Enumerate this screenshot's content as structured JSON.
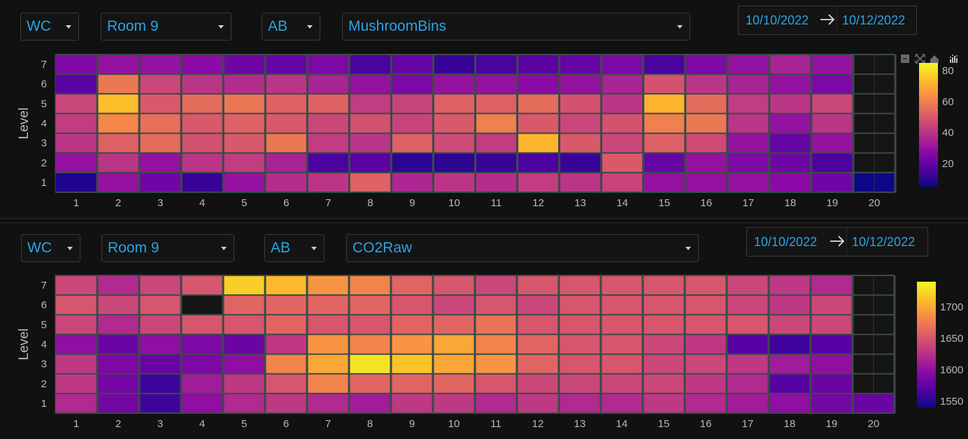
{
  "panels": [
    {
      "filters": {
        "site": "WC",
        "room": "Room 9",
        "zone": "AB",
        "metric": "MushroomBins"
      },
      "date_range": {
        "start": "10/10/2022",
        "end": "10/12/2022"
      },
      "chart_data": {
        "type": "heatmap",
        "title": "",
        "xlabel": "",
        "ylabel": "Level",
        "x": [
          1,
          2,
          3,
          4,
          5,
          6,
          7,
          8,
          9,
          10,
          11,
          12,
          13,
          14,
          15,
          16,
          17,
          18,
          19,
          20
        ],
        "y": [
          1,
          2,
          3,
          4,
          5,
          6,
          7
        ],
        "colorscale": "plasma",
        "zmin": 5,
        "zmax": 85,
        "colorbar_ticks": [
          20,
          40,
          60,
          80
        ],
        "z": [
          [
            8,
            30,
            22,
            12,
            30,
            38,
            40,
            52,
            36,
            40,
            38,
            42,
            40,
            44,
            30,
            30,
            30,
            28,
            22,
            5
          ],
          [
            30,
            40,
            30,
            40,
            42,
            35,
            15,
            18,
            10,
            10,
            12,
            15,
            12,
            50,
            20,
            30,
            25,
            22,
            15,
            null
          ],
          [
            40,
            52,
            55,
            48,
            50,
            58,
            42,
            40,
            52,
            46,
            42,
            72,
            50,
            45,
            52,
            46,
            30,
            20,
            30,
            null
          ],
          [
            42,
            62,
            56,
            50,
            52,
            50,
            45,
            48,
            44,
            50,
            60,
            50,
            45,
            48,
            60,
            58,
            40,
            30,
            40,
            null
          ],
          [
            45,
            74,
            50,
            55,
            58,
            52,
            52,
            42,
            44,
            52,
            52,
            55,
            48,
            40,
            72,
            55,
            42,
            40,
            45,
            null
          ],
          [
            18,
            58,
            45,
            40,
            38,
            40,
            35,
            30,
            25,
            30,
            30,
            28,
            30,
            35,
            48,
            40,
            35,
            30,
            25,
            null
          ],
          [
            25,
            30,
            30,
            28,
            22,
            20,
            25,
            15,
            20,
            12,
            15,
            18,
            20,
            25,
            15,
            25,
            30,
            35,
            30,
            null
          ]
        ]
      }
    },
    {
      "filters": {
        "site": "WC",
        "room": "Room 9",
        "zone": "AB",
        "metric": "CO2Raw"
      },
      "date_range": {
        "start": "10/10/2022",
        "end": "10/12/2022"
      },
      "chart_data": {
        "type": "heatmap",
        "title": "",
        "xlabel": "",
        "ylabel": "Level",
        "x": [
          1,
          2,
          3,
          4,
          5,
          6,
          7,
          8,
          9,
          10,
          11,
          12,
          13,
          14,
          15,
          16,
          17,
          18,
          19,
          20
        ],
        "y": [
          1,
          2,
          3,
          4,
          5,
          6,
          7
        ],
        "colorscale": "plasma",
        "zmin": 1540,
        "zmax": 1740,
        "colorbar_ticks": [
          1550,
          1600,
          1650,
          1700
        ],
        "z": [
          [
            1620,
            1585,
            1560,
            1600,
            1620,
            1630,
            1620,
            1610,
            1630,
            1630,
            1620,
            1630,
            1620,
            1620,
            1630,
            1620,
            1610,
            1600,
            1585,
            1580
          ],
          [
            1630,
            1585,
            1560,
            1610,
            1630,
            1650,
            1680,
            1660,
            1660,
            1660,
            1650,
            1640,
            1640,
            1640,
            1640,
            1630,
            1620,
            1570,
            1580,
            null
          ],
          [
            1630,
            1590,
            1580,
            1590,
            1600,
            1680,
            1700,
            1730,
            1715,
            1700,
            1690,
            1660,
            1650,
            1650,
            1640,
            1640,
            1630,
            1610,
            1600,
            null
          ],
          [
            1600,
            1580,
            1600,
            1590,
            1580,
            1630,
            1690,
            1680,
            1690,
            1700,
            1680,
            1660,
            1650,
            1650,
            1640,
            1630,
            1570,
            1560,
            1570,
            null
          ],
          [
            1640,
            1620,
            1640,
            1650,
            1650,
            1660,
            1650,
            1650,
            1660,
            1660,
            1670,
            1650,
            1650,
            1650,
            1650,
            1650,
            1650,
            1640,
            1640,
            null
          ],
          [
            1650,
            1640,
            1650,
            null,
            1660,
            1660,
            1660,
            1660,
            1650,
            1640,
            1650,
            1640,
            1650,
            1650,
            1650,
            1650,
            1640,
            1630,
            1640,
            null
          ],
          [
            1640,
            1620,
            1640,
            1650,
            1720,
            1710,
            1690,
            1680,
            1660,
            1650,
            1640,
            1650,
            1650,
            1650,
            1650,
            1650,
            1640,
            1630,
            1620,
            null
          ]
        ]
      }
    }
  ],
  "icons": [
    "camera-icon",
    "zoom-icon",
    "pan-icon",
    "zoom-in-icon",
    "zoom-out-icon",
    "autoscale-icon",
    "reset-axes-icon",
    "plotly-logo-icon"
  ]
}
